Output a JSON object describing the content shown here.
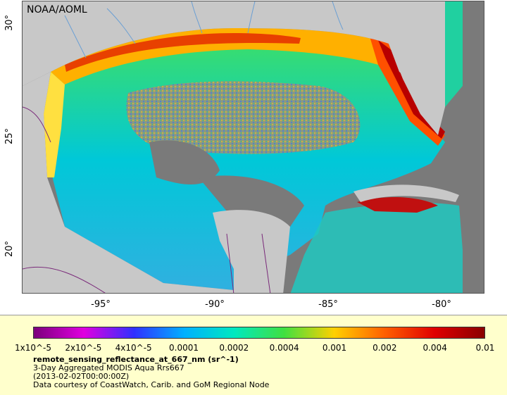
{
  "map": {
    "credit": "NOAA/AOML",
    "lat_ticks": [
      "30°",
      "25°",
      "20°"
    ],
    "lon_ticks": [
      "-95°",
      "-90°",
      "-85°",
      "-80°"
    ],
    "colors": {
      "land": "#c8c8c8",
      "nodata": "#7a7a7a",
      "rivers": "#6a9fd4",
      "borders": "#7a2a7a"
    }
  },
  "legend": {
    "colorbar_labels": [
      "1x10^-5",
      "2x10^-5",
      "4x10^-5",
      "0.0001",
      "0.0002",
      "0.0004",
      "0.001",
      "0.002",
      "0.004",
      "0.01"
    ],
    "colorbar_colors": [
      "#7b007b",
      "#e000e0",
      "#3030ff",
      "#00b0ff",
      "#00e8c0",
      "#40e040",
      "#ffd000",
      "#ff6000",
      "#e00000",
      "#8a0000"
    ],
    "variable": "remote_sensing_reflectance_at_667_nm (sr^-1)",
    "description": "3-Day Aggregated MODIS Aqua Rrs667",
    "date": "(2013-02-02T00:00:00Z)",
    "courtesy": "Data courtesy of CoastWatch, Carib. and GoM Regional Node"
  }
}
